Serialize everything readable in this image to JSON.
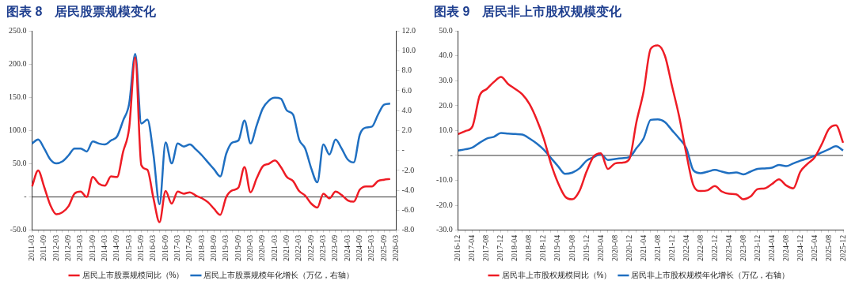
{
  "chart_data": [
    {
      "type": "line",
      "title": "图表 8　居民股票规模变化",
      "categories": [
        "2011-03",
        null,
        "2011-09",
        null,
        "2012-03",
        null,
        "2012-09",
        null,
        "2013-03",
        null,
        "2013-09",
        null,
        "2014-03",
        null,
        "2014-09",
        null,
        "2015-03",
        null,
        "2015-09",
        null,
        "2016-03",
        null,
        "2016-09",
        null,
        "2017-03",
        null,
        "2017-09",
        null,
        "2018-03",
        null,
        "2018-09",
        null,
        "2019-03",
        null,
        "2019-09",
        null,
        "2020-03",
        null,
        "2020-09",
        null,
        "2021-03",
        null,
        "2021-09",
        null,
        "2022-03",
        null,
        "2022-09",
        null,
        "2023-03",
        null,
        "2023-09",
        null,
        "2024-03",
        null,
        "2024-09",
        null,
        "2025-03",
        null,
        "2025-09",
        null,
        "2026-03"
      ],
      "series": [
        {
          "name": "居民上市股票规模同比（%）",
          "color": "#ee1c25",
          "values": [
            16,
            40,
            15,
            -12,
            -26,
            -23,
            -14,
            5,
            8,
            0,
            30,
            20,
            17,
            31,
            30,
            68,
            104,
            210,
            48,
            41,
            -2,
            -38,
            9,
            -10,
            8,
            5,
            7,
            2,
            -2,
            -8,
            -18,
            -27,
            0,
            10,
            14,
            45,
            7,
            28,
            46,
            50,
            55,
            45,
            30,
            24,
            9,
            2,
            -10,
            -16,
            5,
            -2,
            8,
            3,
            -5,
            -7,
            11,
            16,
            16,
            24,
            26,
            27,
            null
          ]
        },
        {
          "name": "居民上市股票规模年化增长（万亿，右轴）",
          "color": "#1f6fc1",
          "axis": "y2",
          "values": [
            0.7,
            1.1,
            0.2,
            -0.9,
            -1.3,
            -1.1,
            -0.5,
            0.2,
            0.2,
            -0.1,
            0.9,
            0.7,
            0.6,
            1.0,
            1.4,
            3.0,
            4.7,
            9.7,
            2.7,
            3.1,
            -0.4,
            -5.4,
            0.8,
            -1.3,
            0.7,
            0.4,
            0.6,
            0.1,
            -0.5,
            -1.2,
            -1.9,
            -2.6,
            -0.3,
            0.8,
            1.0,
            3.0,
            0.7,
            2.5,
            4.2,
            5.0,
            5.3,
            5.2,
            4.0,
            3.6,
            1.1,
            0.2,
            -1.8,
            -3.2,
            0.6,
            -0.4,
            1.1,
            0.2,
            -0.9,
            -1.2,
            1.6,
            2.3,
            2.4,
            3.6,
            4.6,
            4.7,
            null
          ]
        }
      ],
      "ylim": [
        -50,
        250
      ],
      "yticks": [
        {
          "value": -50,
          "label": "-50.0"
        },
        {
          "value": 0,
          "label": "-"
        },
        {
          "value": 50,
          "label": "50.0"
        },
        {
          "value": 100,
          "label": "100.0"
        },
        {
          "value": 150,
          "label": "150.0"
        },
        {
          "value": 200,
          "label": "200.0"
        },
        {
          "value": 250,
          "label": "250.0"
        }
      ],
      "y2lim": [
        -8,
        12
      ],
      "y2ticks": [
        {
          "value": -8,
          "label": "-8.0"
        },
        {
          "value": -6,
          "label": "-6.0"
        },
        {
          "value": -4,
          "label": "-4.0"
        },
        {
          "value": -2,
          "label": "-2.0"
        },
        {
          "value": 0,
          "label": "-"
        },
        {
          "value": 2,
          "label": "2.0"
        },
        {
          "value": 4,
          "label": "4.0"
        },
        {
          "value": 6,
          "label": "6.0"
        },
        {
          "value": 8,
          "label": "8.0"
        },
        {
          "value": 10,
          "label": "10.0"
        },
        {
          "value": 12,
          "label": "12.0"
        }
      ],
      "ref_lines": [
        {
          "axis": "y",
          "value": 0,
          "color": "#333333"
        }
      ],
      "legend": "bottom",
      "grid": false
    },
    {
      "type": "line",
      "title": "图表 9　居民非上市股权规模变化",
      "categories": [
        "2016-12",
        null,
        "2017-04",
        null,
        "2017-08",
        null,
        "2017-12",
        null,
        "2018-04",
        null,
        "2018-08",
        null,
        "2018-12",
        null,
        "2019-04",
        null,
        "2019-08",
        null,
        "2019-12",
        null,
        "2020-04",
        null,
        "2020-08",
        null,
        "2020-12",
        null,
        "2021-04",
        null,
        "2021-08",
        null,
        "2021-12",
        null,
        "2022-04",
        null,
        "2022-08",
        null,
        "2022-12",
        null,
        "2023-04",
        null,
        "2023-08",
        null,
        "2023-12",
        null,
        "2024-04",
        null,
        "2024-08",
        null,
        "2024-12",
        null,
        "2025-04",
        null,
        "2025-08",
        null,
        "2025-12"
      ],
      "series": [
        {
          "name": "居民非上市股权规模同比（%）",
          "color": "#ee1c25",
          "values": [
            8.6,
            9.8,
            11.7,
            24,
            26.7,
            29.5,
            31.5,
            28.7,
            26.7,
            24.5,
            20.6,
            14.5,
            6.8,
            -3.2,
            -11,
            -16.5,
            -17.6,
            -14.3,
            -6.5,
            -0.4,
            0.9,
            -5.4,
            -3.2,
            -2.9,
            -1.5,
            13.4,
            25.6,
            42.8,
            44.2,
            40,
            27.8,
            15.6,
            0.7,
            -12,
            -14.3,
            -14,
            -12.3,
            -14.5,
            -15.4,
            -15.6,
            -17.6,
            -16.5,
            -13.5,
            -13.2,
            -11.5,
            -9.6,
            -12,
            -13.2,
            -6.5,
            -3.4,
            -0.8,
            4.5,
            10.6,
            12.1,
            5.1
          ]
        },
        {
          "name": "居民非上市股权规模年化增长（万亿，右轴）",
          "color": "#1f6fc1",
          "values": [
            2.0,
            2.5,
            3.2,
            5.1,
            6.8,
            7.5,
            9.0,
            8.8,
            8.6,
            8.4,
            6.8,
            4.8,
            2.3,
            -1,
            -4.3,
            -7.4,
            -6.9,
            -5.2,
            -2.1,
            -0.7,
            0.5,
            -1.8,
            -1.4,
            -1.1,
            -0.7,
            2.9,
            6.8,
            14.3,
            14.5,
            13.4,
            10.1,
            6.8,
            2.9,
            -6,
            -7.1,
            -6.5,
            -5.8,
            -6.5,
            -7.1,
            -6.8,
            -7.6,
            -6.5,
            -5.4,
            -5.2,
            -4.9,
            -3.8,
            -4.3,
            -3.2,
            -2.1,
            -1.2,
            -0.1,
            1.2,
            2.5,
            3.7,
            2.0
          ]
        }
      ],
      "ylim": [
        -30,
        50
      ],
      "yticks": [
        {
          "value": -30,
          "label": "-30.0"
        },
        {
          "value": -20,
          "label": "-20.0"
        },
        {
          "value": -10,
          "label": "-10.0"
        },
        {
          "value": 0,
          "label": "-"
        },
        {
          "value": 10,
          "label": "10.0"
        },
        {
          "value": 20,
          "label": "20.0"
        },
        {
          "value": 30,
          "label": "30.0"
        },
        {
          "value": 40,
          "label": "40.0"
        },
        {
          "value": 50,
          "label": "50.0"
        }
      ],
      "ref_lines": [
        {
          "axis": "y",
          "value": 0,
          "color": "#333333"
        }
      ],
      "legend": "bottom",
      "grid": false
    }
  ]
}
